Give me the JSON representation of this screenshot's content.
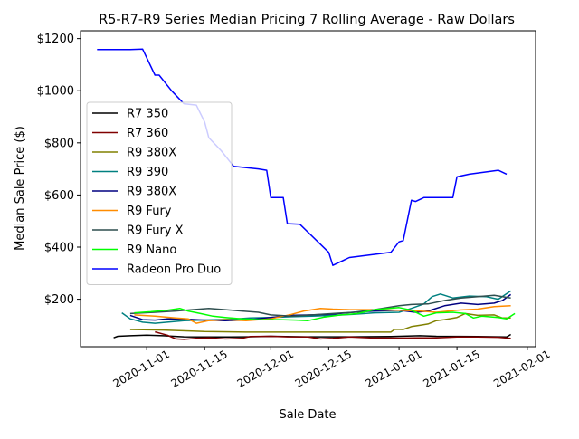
{
  "chart_data": {
    "type": "line",
    "title": "R5-R7-R9 Series Median Pricing 7 Rolling Average - Raw Dollars",
    "xlabel": "Sale Date",
    "ylabel": "Median Sale Price ($)",
    "x_range": [
      "2020-10-16",
      "2021-02-03"
    ],
    "ylim": [
      18,
      1230
    ],
    "x_ticks": [
      {
        "date": "2020-11-01",
        "label": "2020-11-01"
      },
      {
        "date": "2020-11-15",
        "label": "2020-11-15"
      },
      {
        "date": "2020-12-01",
        "label": "2020-12-01"
      },
      {
        "date": "2020-12-15",
        "label": "2020-12-15"
      },
      {
        "date": "2021-01-01",
        "label": "2021-01-01"
      },
      {
        "date": "2021-01-15",
        "label": "2021-01-15"
      },
      {
        "date": "2021-02-01",
        "label": "2021-02-01"
      }
    ],
    "y_ticks": [
      {
        "value": 200,
        "label": "$200"
      },
      {
        "value": 400,
        "label": "$400"
      },
      {
        "value": 600,
        "label": "$600"
      },
      {
        "value": 800,
        "label": "$800"
      },
      {
        "value": 1000,
        "label": "$1000"
      },
      {
        "value": 1200,
        "label": "$1200"
      }
    ],
    "legend_position": "center-left",
    "grid": false,
    "series": [
      {
        "name": "R7 350",
        "color": "#000000",
        "points": [
          [
            "2020-10-24",
            52
          ],
          [
            "2020-10-25",
            58
          ],
          [
            "2020-10-28",
            60
          ],
          [
            "2020-11-01",
            62
          ],
          [
            "2020-11-05",
            60
          ],
          [
            "2020-11-10",
            56
          ],
          [
            "2020-11-15",
            55
          ],
          [
            "2020-11-20",
            55
          ],
          [
            "2020-11-25",
            56
          ],
          [
            "2020-12-01",
            58
          ],
          [
            "2020-12-10",
            56
          ],
          [
            "2020-12-20",
            56
          ],
          [
            "2020-12-30",
            57
          ],
          [
            "2021-01-06",
            60
          ],
          [
            "2021-01-10",
            58
          ],
          [
            "2021-01-20",
            57
          ],
          [
            "2021-01-27",
            55
          ],
          [
            "2021-01-28",
            65
          ]
        ]
      },
      {
        "name": "R7 360",
        "color": "#800000",
        "points": [
          [
            "2020-11-03",
            75
          ],
          [
            "2020-11-06",
            62
          ],
          [
            "2020-11-08",
            48
          ],
          [
            "2020-11-10",
            46
          ],
          [
            "2020-11-13",
            50
          ],
          [
            "2020-11-16",
            52
          ],
          [
            "2020-11-20",
            48
          ],
          [
            "2020-11-24",
            50
          ],
          [
            "2020-11-26",
            57
          ],
          [
            "2020-12-01",
            58
          ],
          [
            "2020-12-05",
            56
          ],
          [
            "2020-12-10",
            55
          ],
          [
            "2020-12-13",
            48
          ],
          [
            "2020-12-16",
            50
          ],
          [
            "2020-12-20",
            55
          ],
          [
            "2020-12-25",
            52
          ],
          [
            "2021-01-01",
            51
          ],
          [
            "2021-01-05",
            52
          ],
          [
            "2021-01-10",
            52
          ],
          [
            "2021-01-15",
            55
          ],
          [
            "2021-01-20",
            55
          ],
          [
            "2021-01-25",
            54
          ],
          [
            "2021-01-28",
            50
          ]
        ]
      },
      {
        "name": "R9 380X",
        "color": "#808000",
        "points": [
          [
            "2020-10-28",
            84
          ],
          [
            "2020-11-05",
            82
          ],
          [
            "2020-11-15",
            76
          ],
          [
            "2020-11-25",
            74
          ],
          [
            "2020-12-05",
            74
          ],
          [
            "2020-12-15",
            74
          ],
          [
            "2020-12-25",
            74
          ],
          [
            "2020-12-30",
            74
          ],
          [
            "2020-12-31",
            85
          ],
          [
            "2021-01-02",
            84
          ],
          [
            "2021-01-04",
            95
          ],
          [
            "2021-01-06",
            100
          ],
          [
            "2021-01-08",
            105
          ],
          [
            "2021-01-10",
            118
          ],
          [
            "2021-01-12",
            122
          ],
          [
            "2021-01-15",
            130
          ],
          [
            "2021-01-17",
            145
          ],
          [
            "2021-01-20",
            138
          ],
          [
            "2021-01-24",
            140
          ],
          [
            "2021-01-26",
            128
          ],
          [
            "2021-01-28",
            128
          ]
        ]
      },
      {
        "name": "R9 390",
        "color": "#008080",
        "points": [
          [
            "2020-10-26",
            148
          ],
          [
            "2020-10-28",
            125
          ],
          [
            "2020-10-31",
            112
          ],
          [
            "2020-11-03",
            108
          ],
          [
            "2020-11-06",
            112
          ],
          [
            "2020-11-10",
            118
          ],
          [
            "2020-11-14",
            120
          ],
          [
            "2020-11-18",
            122
          ],
          [
            "2020-11-22",
            124
          ],
          [
            "2020-11-26",
            128
          ],
          [
            "2020-12-01",
            130
          ],
          [
            "2020-12-06",
            133
          ],
          [
            "2020-12-11",
            135
          ],
          [
            "2020-12-16",
            138
          ],
          [
            "2020-12-21",
            142
          ],
          [
            "2020-12-26",
            148
          ],
          [
            "2021-01-01",
            150
          ],
          [
            "2021-01-04",
            165
          ],
          [
            "2021-01-07",
            182
          ],
          [
            "2021-01-09",
            210
          ],
          [
            "2021-01-11",
            220
          ],
          [
            "2021-01-14",
            205
          ],
          [
            "2021-01-18",
            212
          ],
          [
            "2021-01-22",
            210
          ],
          [
            "2021-01-25",
            200
          ],
          [
            "2021-01-28",
            232
          ]
        ]
      },
      {
        "name": "R9 380X",
        "color": "#000080",
        "points": [
          [
            "2020-10-28",
            138
          ],
          [
            "2020-10-31",
            122
          ],
          [
            "2020-11-03",
            120
          ],
          [
            "2020-11-06",
            125
          ],
          [
            "2020-11-10",
            124
          ],
          [
            "2020-11-15",
            120
          ],
          [
            "2020-11-20",
            118
          ],
          [
            "2020-11-25",
            120
          ],
          [
            "2020-12-01",
            130
          ],
          [
            "2020-12-06",
            138
          ],
          [
            "2020-12-11",
            140
          ],
          [
            "2020-12-16",
            143
          ],
          [
            "2020-12-21",
            150
          ],
          [
            "2020-12-26",
            155
          ],
          [
            "2021-01-01",
            158
          ],
          [
            "2021-01-05",
            150
          ],
          [
            "2021-01-08",
            155
          ],
          [
            "2021-01-12",
            175
          ],
          [
            "2021-01-16",
            185
          ],
          [
            "2021-01-20",
            180
          ],
          [
            "2021-01-24",
            185
          ],
          [
            "2021-01-26",
            195
          ],
          [
            "2021-01-28",
            218
          ]
        ]
      },
      {
        "name": "R9 Fury",
        "color": "#ff8c00",
        "points": [
          [
            "2020-10-29",
            140
          ],
          [
            "2020-11-03",
            135
          ],
          [
            "2020-11-08",
            128
          ],
          [
            "2020-11-11",
            125
          ],
          [
            "2020-11-13",
            108
          ],
          [
            "2020-11-16",
            118
          ],
          [
            "2020-11-20",
            122
          ],
          [
            "2020-11-25",
            118
          ],
          [
            "2020-12-01",
            125
          ],
          [
            "2020-12-06",
            142
          ],
          [
            "2020-12-09",
            155
          ],
          [
            "2020-12-13",
            165
          ],
          [
            "2020-12-16",
            162
          ],
          [
            "2020-12-20",
            160
          ],
          [
            "2020-12-25",
            160
          ],
          [
            "2021-01-01",
            158
          ],
          [
            "2021-01-06",
            155
          ],
          [
            "2021-01-10",
            150
          ],
          [
            "2021-01-15",
            158
          ],
          [
            "2021-01-20",
            162
          ],
          [
            "2021-01-24",
            172
          ],
          [
            "2021-01-28",
            175
          ]
        ]
      },
      {
        "name": "R9 Fury X",
        "color": "#2f4f4f",
        "points": [
          [
            "2020-10-28",
            145
          ],
          [
            "2020-11-03",
            150
          ],
          [
            "2020-11-08",
            155
          ],
          [
            "2020-11-12",
            160
          ],
          [
            "2020-11-16",
            165
          ],
          [
            "2020-11-20",
            160
          ],
          [
            "2020-11-24",
            155
          ],
          [
            "2020-11-28",
            150
          ],
          [
            "2020-12-01",
            140
          ],
          [
            "2020-12-06",
            135
          ],
          [
            "2020-12-11",
            140
          ],
          [
            "2020-12-16",
            145
          ],
          [
            "2020-12-21",
            150
          ],
          [
            "2020-12-26",
            160
          ],
          [
            "2021-01-01",
            175
          ],
          [
            "2021-01-04",
            180
          ],
          [
            "2021-01-08",
            182
          ],
          [
            "2021-01-12",
            195
          ],
          [
            "2021-01-16",
            205
          ],
          [
            "2021-01-20",
            210
          ],
          [
            "2021-01-24",
            215
          ],
          [
            "2021-01-28",
            205
          ]
        ]
      },
      {
        "name": "R9 Nano",
        "color": "#00ff00",
        "points": [
          [
            "2020-10-29",
            148
          ],
          [
            "2020-11-02",
            152
          ],
          [
            "2020-11-06",
            158
          ],
          [
            "2020-11-09",
            165
          ],
          [
            "2020-11-11",
            155
          ],
          [
            "2020-11-14",
            145
          ],
          [
            "2020-11-17",
            135
          ],
          [
            "2020-11-20",
            130
          ],
          [
            "2020-11-24",
            125
          ],
          [
            "2020-11-28",
            122
          ],
          [
            "2020-12-03",
            122
          ],
          [
            "2020-12-07",
            120
          ],
          [
            "2020-12-10",
            118
          ],
          [
            "2020-12-14",
            132
          ],
          [
            "2020-12-18",
            140
          ],
          [
            "2020-12-22",
            145
          ],
          [
            "2020-12-26",
            160
          ],
          [
            "2021-01-01",
            168
          ],
          [
            "2021-01-04",
            158
          ],
          [
            "2021-01-07",
            135
          ],
          [
            "2021-01-10",
            148
          ],
          [
            "2021-01-14",
            150
          ],
          [
            "2021-01-17",
            145
          ],
          [
            "2021-01-19",
            128
          ],
          [
            "2021-01-21",
            135
          ],
          [
            "2021-01-25",
            130
          ],
          [
            "2021-01-27",
            125
          ],
          [
            "2021-01-29",
            145
          ]
        ]
      },
      {
        "name": "Radeon Pro Duo",
        "color": "#0000ff",
        "points": [
          [
            "2020-10-20",
            1158
          ],
          [
            "2020-10-28",
            1158
          ],
          [
            "2020-10-31",
            1160
          ],
          [
            "2020-11-03",
            1060
          ],
          [
            "2020-11-04",
            1060
          ],
          [
            "2020-11-07",
            1000
          ],
          [
            "2020-11-10",
            950
          ],
          [
            "2020-11-13",
            945
          ],
          [
            "2020-11-15",
            880
          ],
          [
            "2020-11-16",
            820
          ],
          [
            "2020-11-19",
            770
          ],
          [
            "2020-11-22",
            710
          ],
          [
            "2020-11-28",
            700
          ],
          [
            "2020-11-30",
            695
          ],
          [
            "2020-12-01",
            590
          ],
          [
            "2020-12-04",
            590
          ],
          [
            "2020-12-05",
            490
          ],
          [
            "2020-12-08",
            488
          ],
          [
            "2020-12-15",
            380
          ],
          [
            "2020-12-16",
            330
          ],
          [
            "2020-12-20",
            360
          ],
          [
            "2020-12-30",
            380
          ],
          [
            "2021-01-01",
            420
          ],
          [
            "2021-01-02",
            425
          ],
          [
            "2021-01-04",
            580
          ],
          [
            "2021-01-05",
            575
          ],
          [
            "2021-01-07",
            590
          ],
          [
            "2021-01-14",
            590
          ],
          [
            "2021-01-15",
            670
          ],
          [
            "2021-01-18",
            680
          ],
          [
            "2021-01-25",
            695
          ],
          [
            "2021-01-27",
            680
          ]
        ]
      }
    ]
  }
}
